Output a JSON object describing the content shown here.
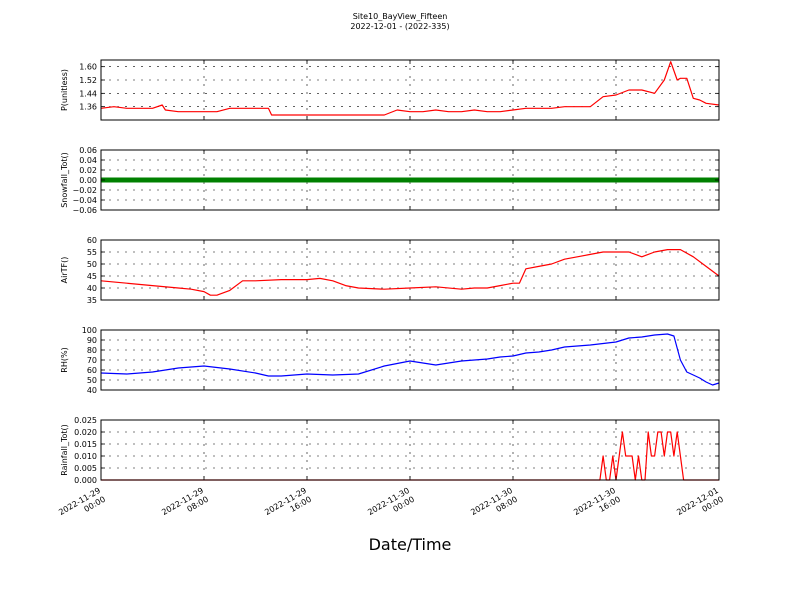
{
  "figure": {
    "title_line1": "Site10_BayView_Fifteen",
    "title_line2": "2022-12-01 - (2022-335)",
    "xlabel": "Date/Time"
  },
  "x_axis": {
    "range": [
      "2022-11-29 00:00",
      "2022-12-01 00:00"
    ],
    "ticks": [
      {
        "value": "2022-11-29 00:00",
        "line1": "2022-11-29",
        "line2": "00:00"
      },
      {
        "value": "2022-11-29 08:00",
        "line1": "2022-11-29",
        "line2": "08:00"
      },
      {
        "value": "2022-11-29 16:00",
        "line1": "2022-11-29",
        "line2": "16:00"
      },
      {
        "value": "2022-11-30 00:00",
        "line1": "2022-11-30",
        "line2": "00:00"
      },
      {
        "value": "2022-11-30 08:00",
        "line1": "2022-11-30",
        "line2": "08:00"
      },
      {
        "value": "2022-11-30 16:00",
        "line1": "2022-11-30",
        "line2": "16:00"
      },
      {
        "value": "2022-12-01 00:00",
        "line1": "2022-12-01",
        "line2": "00:00"
      }
    ]
  },
  "chart_data": [
    {
      "type": "line",
      "ylabel": "P(unitless)",
      "ylim": [
        1.28,
        1.64
      ],
      "yticks": [
        "1.36",
        "1.44",
        "1.52",
        "1.60"
      ],
      "grid": true,
      "series": [
        {
          "color": "#ff0000",
          "x": [
            "2022-11-29 00:00",
            "2022-11-29 01:00",
            "2022-11-29 02:00",
            "2022-11-29 03:00",
            "2022-11-29 04:00",
            "2022-11-29 04:45",
            "2022-11-29 05:00",
            "2022-11-29 06:00",
            "2022-11-29 07:00",
            "2022-11-29 08:00",
            "2022-11-29 09:00",
            "2022-11-29 10:00",
            "2022-11-29 11:00",
            "2022-11-29 12:00",
            "2022-11-29 13:00",
            "2022-11-29 13:15",
            "2022-11-29 14:00",
            "2022-11-29 16:00",
            "2022-11-29 18:00",
            "2022-11-29 20:00",
            "2022-11-29 22:00",
            "2022-11-29 23:00",
            "2022-11-30 00:00",
            "2022-11-30 01:00",
            "2022-11-30 02:00",
            "2022-11-30 03:00",
            "2022-11-30 04:00",
            "2022-11-30 05:00",
            "2022-11-30 06:00",
            "2022-11-30 07:00",
            "2022-11-30 08:00",
            "2022-11-30 09:00",
            "2022-11-30 10:00",
            "2022-11-30 11:00",
            "2022-11-30 12:00",
            "2022-11-30 13:00",
            "2022-11-30 14:00",
            "2022-11-30 15:00",
            "2022-11-30 16:00",
            "2022-11-30 17:00",
            "2022-11-30 18:00",
            "2022-11-30 19:00",
            "2022-11-30 19:45",
            "2022-11-30 20:15",
            "2022-11-30 20:45",
            "2022-11-30 21:00",
            "2022-11-30 21:30",
            "2022-11-30 22:00",
            "2022-11-30 22:30",
            "2022-11-30 23:00",
            "2022-12-01 00:00"
          ],
          "y": [
            1.35,
            1.36,
            1.35,
            1.35,
            1.35,
            1.37,
            1.34,
            1.33,
            1.33,
            1.33,
            1.33,
            1.35,
            1.35,
            1.35,
            1.35,
            1.31,
            1.31,
            1.31,
            1.31,
            1.31,
            1.31,
            1.34,
            1.33,
            1.33,
            1.34,
            1.33,
            1.33,
            1.34,
            1.33,
            1.33,
            1.34,
            1.35,
            1.35,
            1.35,
            1.36,
            1.36,
            1.36,
            1.42,
            1.43,
            1.46,
            1.46,
            1.44,
            1.52,
            1.63,
            1.52,
            1.53,
            1.53,
            1.41,
            1.4,
            1.38,
            1.37
          ]
        }
      ]
    },
    {
      "type": "line",
      "ylabel": "Snowfall_Tot()",
      "ylim": [
        -0.06,
        0.06
      ],
      "yticks": [
        "−0.06",
        "−0.04",
        "−0.02",
        "0.00",
        "0.02",
        "0.04",
        "0.06"
      ],
      "grid": true,
      "series": [
        {
          "color": "#008000",
          "marker": "square",
          "x": [
            "2022-11-29 00:00",
            "2022-12-01 00:00"
          ],
          "y": [
            0.0,
            0.0
          ]
        }
      ]
    },
    {
      "type": "line",
      "ylabel": "AirTF()",
      "ylim": [
        35,
        60
      ],
      "yticks": [
        "35",
        "40",
        "45",
        "50",
        "55",
        "60"
      ],
      "grid": true,
      "series": [
        {
          "color": "#ff0000",
          "x": [
            "2022-11-29 00:00",
            "2022-11-29 02:00",
            "2022-11-29 04:00",
            "2022-11-29 06:00",
            "2022-11-29 07:00",
            "2022-11-29 08:00",
            "2022-11-29 08:30",
            "2022-11-29 09:00",
            "2022-11-29 10:00",
            "2022-11-29 11:00",
            "2022-11-29 12:00",
            "2022-11-29 14:00",
            "2022-11-29 16:00",
            "2022-11-29 17:00",
            "2022-11-29 18:00",
            "2022-11-29 19:00",
            "2022-11-29 20:00",
            "2022-11-29 22:00",
            "2022-11-30 00:00",
            "2022-11-30 02:00",
            "2022-11-30 04:00",
            "2022-11-30 05:00",
            "2022-11-30 06:00",
            "2022-11-30 07:00",
            "2022-11-30 08:00",
            "2022-11-30 08:30",
            "2022-11-30 09:00",
            "2022-11-30 10:00",
            "2022-11-30 11:00",
            "2022-11-30 12:00",
            "2022-11-30 13:00",
            "2022-11-30 14:00",
            "2022-11-30 15:00",
            "2022-11-30 16:00",
            "2022-11-30 17:00",
            "2022-11-30 18:00",
            "2022-11-30 19:00",
            "2022-11-30 20:00",
            "2022-11-30 21:00",
            "2022-11-30 22:00",
            "2022-11-30 23:00",
            "2022-12-01 00:00"
          ],
          "y": [
            43,
            42,
            41,
            40,
            39.5,
            38.5,
            37,
            37,
            39,
            43,
            43,
            43.5,
            43.5,
            44,
            43,
            41,
            40,
            39.5,
            40,
            40.5,
            39.5,
            40,
            40,
            41,
            42,
            42,
            48,
            49,
            50,
            52,
            53,
            54,
            55,
            55,
            55,
            53,
            55,
            56,
            56,
            53,
            49,
            45
          ]
        }
      ]
    },
    {
      "type": "line",
      "ylabel": "RH(%)",
      "ylim": [
        40,
        100
      ],
      "yticks": [
        "40",
        "50",
        "60",
        "70",
        "80",
        "90",
        "100"
      ],
      "grid": true,
      "series": [
        {
          "color": "#0000ff",
          "x": [
            "2022-11-29 00:00",
            "2022-11-29 02:00",
            "2022-11-29 04:00",
            "2022-11-29 06:00",
            "2022-11-29 08:00",
            "2022-11-29 10:00",
            "2022-11-29 12:00",
            "2022-11-29 13:00",
            "2022-11-29 14:00",
            "2022-11-29 16:00",
            "2022-11-29 18:00",
            "2022-11-29 20:00",
            "2022-11-29 22:00",
            "2022-11-30 00:00",
            "2022-11-30 02:00",
            "2022-11-30 04:00",
            "2022-11-30 06:00",
            "2022-11-30 07:00",
            "2022-11-30 08:00",
            "2022-11-30 09:00",
            "2022-11-30 10:00",
            "2022-11-30 11:00",
            "2022-11-30 12:00",
            "2022-11-30 14:00",
            "2022-11-30 16:00",
            "2022-11-30 17:00",
            "2022-11-30 18:00",
            "2022-11-30 19:00",
            "2022-11-30 20:00",
            "2022-11-30 20:30",
            "2022-11-30 21:00",
            "2022-11-30 21:30",
            "2022-11-30 22:00",
            "2022-11-30 22:30",
            "2022-11-30 23:00",
            "2022-11-30 23:30",
            "2022-12-01 00:00"
          ],
          "y": [
            57,
            56,
            58,
            62,
            64,
            61,
            57,
            54,
            54,
            56,
            55,
            56,
            64,
            69,
            65,
            69,
            71,
            73,
            74,
            77,
            78,
            80,
            83,
            85,
            88,
            92,
            93,
            95,
            96,
            94,
            70,
            58,
            55,
            52,
            48,
            45,
            47
          ]
        }
      ]
    },
    {
      "type": "line",
      "ylabel": "Rainfall_Tot()",
      "ylim": [
        0,
        0.025
      ],
      "yticks": [
        "0.000",
        "0.005",
        "0.010",
        "0.015",
        "0.020",
        "0.025"
      ],
      "grid": true,
      "series": [
        {
          "color": "#ff0000",
          "x": [
            "2022-11-29 00:00",
            "2022-11-30 14:45",
            "2022-11-30 15:00",
            "2022-11-30 15:15",
            "2022-11-30 15:30",
            "2022-11-30 15:45",
            "2022-11-30 16:00",
            "2022-11-30 16:15",
            "2022-11-30 16:30",
            "2022-11-30 16:45",
            "2022-11-30 17:00",
            "2022-11-30 17:15",
            "2022-11-30 17:30",
            "2022-11-30 17:45",
            "2022-11-30 18:00",
            "2022-11-30 18:15",
            "2022-11-30 18:30",
            "2022-11-30 18:45",
            "2022-11-30 19:00",
            "2022-11-30 19:15",
            "2022-11-30 19:30",
            "2022-11-30 19:45",
            "2022-11-30 20:00",
            "2022-11-30 20:15",
            "2022-11-30 20:30",
            "2022-11-30 20:45",
            "2022-11-30 21:00",
            "2022-11-30 21:15",
            "2022-11-30 21:30",
            "2022-11-30 21:45",
            "2022-12-01 00:00"
          ],
          "y": [
            0,
            0,
            0.01,
            0,
            0,
            0.01,
            0,
            0.01,
            0.02,
            0.01,
            0.01,
            0.01,
            0,
            0.01,
            0,
            0,
            0.02,
            0.01,
            0.01,
            0.02,
            0.02,
            0.01,
            0.02,
            0.02,
            0.01,
            0.02,
            0.01,
            0,
            0,
            0,
            0
          ]
        }
      ]
    }
  ]
}
